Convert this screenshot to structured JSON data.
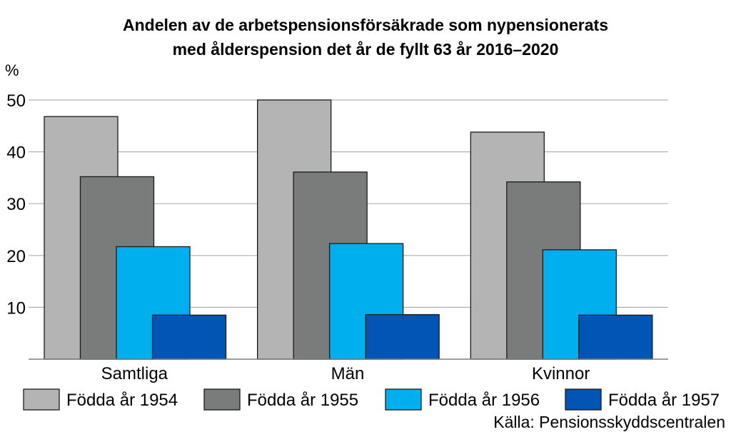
{
  "chart_data": {
    "type": "bar",
    "title_lines": [
      "Andelen av de arbetspensionsförsäkrade som nypensionerats",
      "med ålderspension det år de fyllt 63 år 2016–2020"
    ],
    "unit_label": "%",
    "categories": [
      "Samtliga",
      "Män",
      "Kvinnor"
    ],
    "series": [
      {
        "name": "Födda år 1954",
        "color": "#b3b4b3",
        "values": [
          46.8,
          50.0,
          43.8
        ]
      },
      {
        "name": "Födda år 1955",
        "color": "#797c7b",
        "values": [
          35.2,
          36.1,
          34.2
        ]
      },
      {
        "name": "Födda år 1956",
        "color": "#00b0ee",
        "values": [
          21.7,
          22.3,
          21.1
        ]
      },
      {
        "name": "Födda år 1957",
        "color": "#0055b5",
        "values": [
          8.5,
          8.6,
          8.5
        ]
      }
    ],
    "y_ticks": [
      "10",
      "20",
      "30",
      "40",
      "50"
    ],
    "ylim": [
      0,
      50
    ],
    "grid": true,
    "legend_position": "bottom",
    "source": "Källa: Pensionsskyddscentralen"
  }
}
